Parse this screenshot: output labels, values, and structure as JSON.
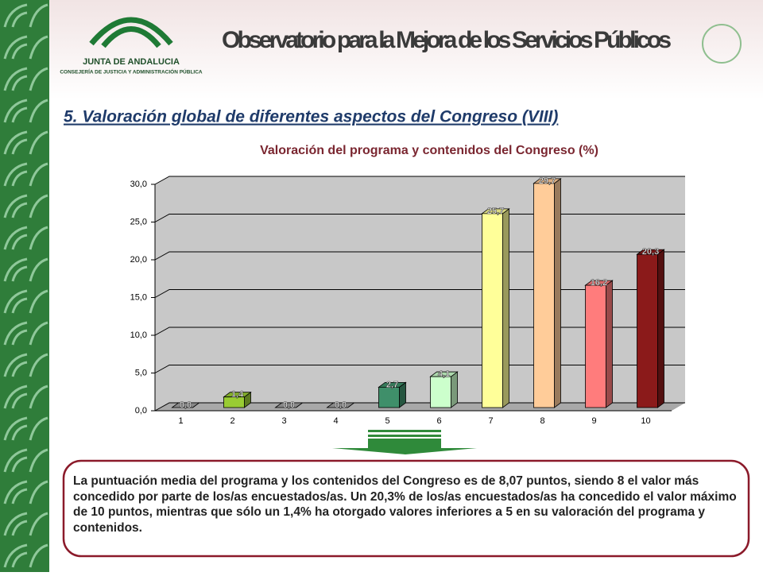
{
  "header": {
    "org": "JUNTA DE ANDALUCIA",
    "dept": "CONSEJERÍA DE JUSTICIA Y ADMINISTRACIÓN PÚBLICA",
    "title": "Observatorio para la Mejora de los Servicios Públicos"
  },
  "slide_title": "5. Valoración global de diferentes aspectos del Congreso (VIII)",
  "chart_data": {
    "type": "bar",
    "title": "Valoración del programa y contenidos del Congreso (%)",
    "categories": [
      "1",
      "2",
      "3",
      "4",
      "5",
      "6",
      "7",
      "8",
      "9",
      "10"
    ],
    "values": [
      0.0,
      1.4,
      0.0,
      0.0,
      2.7,
      4.1,
      25.7,
      29.7,
      16.2,
      20.3
    ],
    "value_labels": [
      "0,0",
      "1,4",
      "0,0",
      "0,0",
      "2,7",
      "4,1",
      "25,7",
      "29,7",
      "16,2",
      "20,3"
    ],
    "colors": [
      "#a0a0a0",
      "#99cc33",
      "#a0a0a0",
      "#a0a0a0",
      "#3f8f6a",
      "#ccffcc",
      "#ffff99",
      "#ffcc99",
      "#ff7c7c",
      "#8b1a1a"
    ],
    "ylim": [
      0,
      30
    ],
    "yticks": [
      {
        "value": 0,
        "label": "0,0"
      },
      {
        "value": 5,
        "label": "5,0"
      },
      {
        "value": 10,
        "label": "10,0"
      },
      {
        "value": 15,
        "label": "15,0"
      },
      {
        "value": 20,
        "label": "20,0"
      },
      {
        "value": 25,
        "label": "25,0"
      },
      {
        "value": 30,
        "label": "30,0"
      }
    ],
    "grid": true
  },
  "summary": "La puntuación media del programa y los contenidos del Congreso es de 8,07 puntos, siendo 8 el valor más concedido por parte de los/as encuestados/as. Un 20,3% de los/as encuestados/as ha concedido el valor máximo de 10 puntos, mientras que sólo un 1,4% ha otorgado valores inferiores a 5 en su valoración del programa y contenidos."
}
